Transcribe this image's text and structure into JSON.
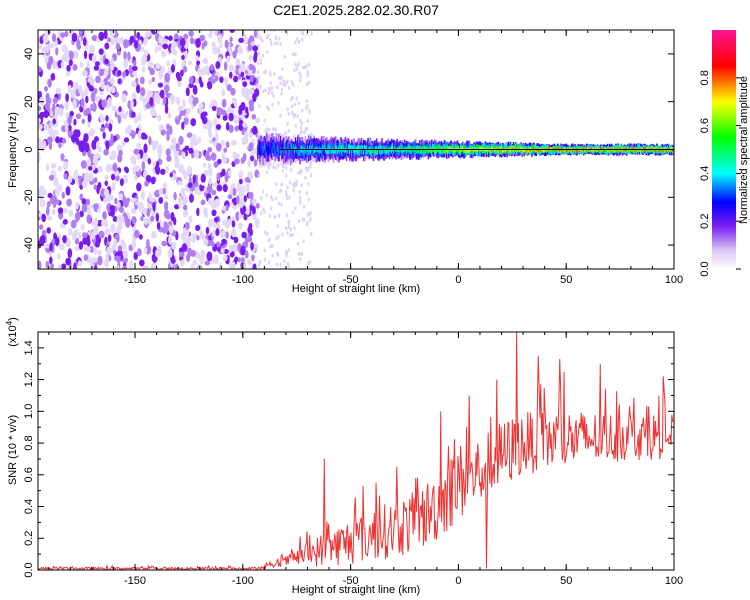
{
  "title": "C2E1.2025.282.02.30.R07",
  "colors": {
    "spectrum_purple": "#7a1cf0",
    "spectrum_light": "#d8c4f6",
    "signal_line": "#000000",
    "snr_line": "#ee3333"
  },
  "chart_data": [
    {
      "type": "heatmap",
      "xlabel": "Height of straight line (km)",
      "ylabel": "Frequency (Hz)",
      "xlim": [
        -195,
        100
      ],
      "ylim": [
        -50,
        50
      ],
      "xticks": [
        -150,
        -100,
        -50,
        0,
        50,
        100
      ],
      "yticks": [
        -40,
        -20,
        0,
        20,
        40
      ],
      "colorbar": {
        "label": "Normalized spectral amplitude",
        "range": [
          0.0,
          1.0
        ],
        "ticks": [
          0.0,
          0.2,
          0.4,
          0.6,
          0.8
        ]
      },
      "noise_region_km": [
        -195,
        -93
      ],
      "signal_line_hz": 0,
      "signal_band": [
        {
          "x": -93,
          "halfwidth_hz": 6,
          "amplitude": 0.35
        },
        {
          "x": -75,
          "halfwidth_hz": 5,
          "amplitude": 0.45
        },
        {
          "x": -50,
          "halfwidth_hz": 4,
          "amplitude": 0.55
        },
        {
          "x": -25,
          "halfwidth_hz": 3.5,
          "amplitude": 0.6
        },
        {
          "x": 0,
          "halfwidth_hz": 3,
          "amplitude": 0.8
        },
        {
          "x": 25,
          "halfwidth_hz": 2.5,
          "amplitude": 0.9
        },
        {
          "x": 50,
          "halfwidth_hz": 2,
          "amplitude": 0.95
        },
        {
          "x": 75,
          "halfwidth_hz": 2,
          "amplitude": 0.95
        },
        {
          "x": 100,
          "halfwidth_hz": 2,
          "amplitude": 0.95
        }
      ]
    },
    {
      "type": "line",
      "xlabel": "Height of straight line (km)",
      "ylabel": "SNR (10 * v/v)",
      "y_multiplier_label": "(x10",
      "y_multiplier_exp": "4",
      "y_multiplier_close": ")",
      "xlim": [
        -195,
        100
      ],
      "ylim": [
        0,
        1.5
      ],
      "xticks": [
        -150,
        -100,
        -50,
        0,
        50,
        100
      ],
      "yticks": [
        0.0,
        0.2,
        0.4,
        0.6,
        0.8,
        1.0,
        1.2,
        1.4
      ],
      "series": [
        {
          "trend": [
            {
              "x": -195,
              "y": 0.01,
              "spread": 0.015
            },
            {
              "x": -95,
              "y": 0.01,
              "spread": 0.015
            },
            {
              "x": -85,
              "y": 0.03,
              "spread": 0.03
            },
            {
              "x": -75,
              "y": 0.08,
              "spread": 0.1
            },
            {
              "x": -65,
              "y": 0.12,
              "spread": 0.2
            },
            {
              "x": -50,
              "y": 0.18,
              "spread": 0.3
            },
            {
              "x": -35,
              "y": 0.24,
              "spread": 0.35
            },
            {
              "x": -20,
              "y": 0.3,
              "spread": 0.4
            },
            {
              "x": -10,
              "y": 0.4,
              "spread": 0.45
            },
            {
              "x": 0,
              "y": 0.55,
              "spread": 0.5
            },
            {
              "x": 10,
              "y": 0.62,
              "spread": 0.45
            },
            {
              "x": 20,
              "y": 0.72,
              "spread": 0.45
            },
            {
              "x": 30,
              "y": 0.8,
              "spread": 0.4
            },
            {
              "x": 45,
              "y": 0.82,
              "spread": 0.4
            },
            {
              "x": 60,
              "y": 0.83,
              "spread": 0.35
            },
            {
              "x": 80,
              "y": 0.84,
              "spread": 0.3
            },
            {
              "x": 100,
              "y": 0.85,
              "spread": 0.3
            }
          ],
          "peaks": [
            {
              "x": -62,
              "y": 0.7
            },
            {
              "x": -8,
              "y": 1.0
            },
            {
              "x": 5,
              "y": 1.1
            },
            {
              "x": 18,
              "y": 1.2
            },
            {
              "x": 27,
              "y": 1.5
            },
            {
              "x": 37,
              "y": 1.35
            },
            {
              "x": 47,
              "y": 1.33
            },
            {
              "x": 66,
              "y": 1.3
            },
            {
              "x": 95,
              "y": 1.22
            }
          ],
          "dips": [
            {
              "x": 13,
              "y": 0.01
            }
          ]
        }
      ]
    }
  ]
}
